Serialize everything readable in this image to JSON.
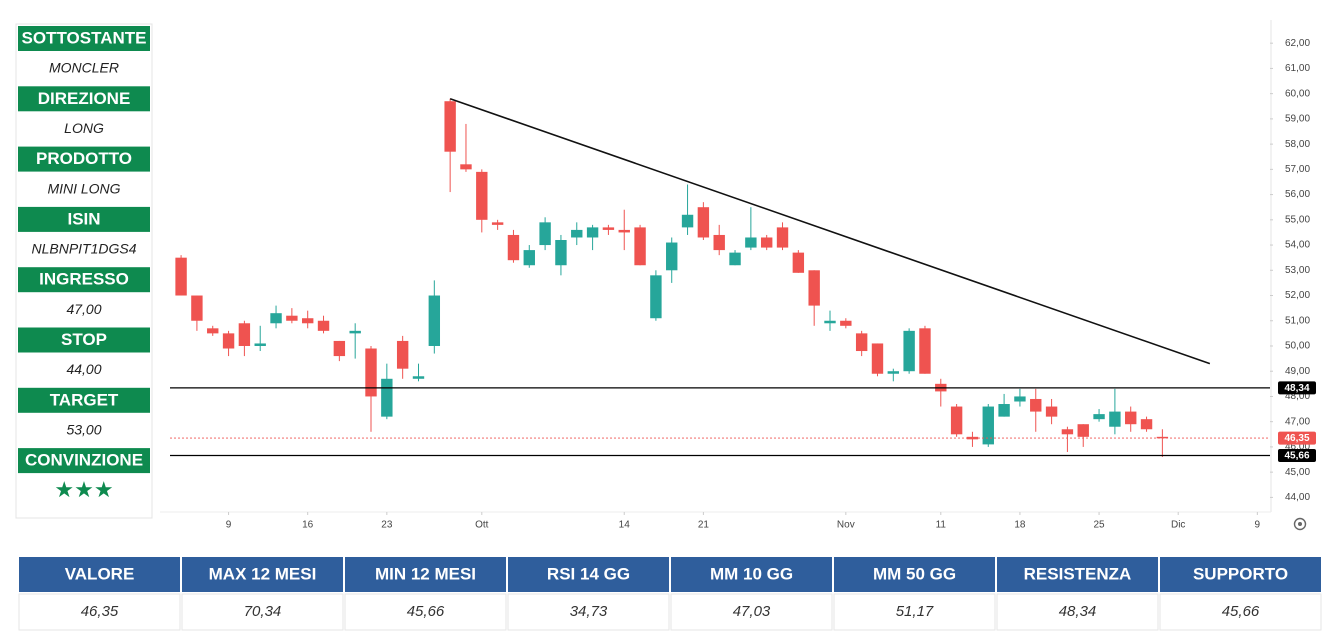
{
  "panel": [
    {
      "label": "SOTTOSTANTE",
      "value": "MONCLER"
    },
    {
      "label": "DIREZIONE",
      "value": "LONG"
    },
    {
      "label": "PRODOTTO",
      "value": "MINI LONG"
    },
    {
      "label": "ISIN",
      "value": "NLBNPIT1DGS4"
    },
    {
      "label": "INGRESSO",
      "value": "47,00"
    },
    {
      "label": "STOP",
      "value": "44,00"
    },
    {
      "label": "TARGET",
      "value": "53,00"
    },
    {
      "label": "CONVINZIONE",
      "value": "★★★"
    }
  ],
  "chart_data": {
    "type": "candlestick",
    "up_color": "#26a69a",
    "down_color": "#ef5350",
    "x": [
      0,
      1,
      2,
      3,
      4,
      5,
      6,
      7,
      8,
      9,
      10,
      11,
      12,
      13,
      14,
      15,
      16,
      17,
      18,
      19,
      20,
      21,
      22,
      23,
      24,
      25,
      26,
      27,
      28,
      29,
      30,
      31,
      32,
      33,
      34,
      35,
      36,
      37,
      38,
      39,
      40,
      41,
      42,
      43,
      44,
      45,
      46,
      47,
      48,
      49,
      50,
      51,
      52,
      53,
      54,
      55,
      56,
      57,
      58,
      59,
      60,
      61,
      62
    ],
    "open": [
      53.5,
      52.0,
      50.7,
      50.5,
      50.9,
      50.0,
      50.9,
      51.2,
      51.1,
      51.0,
      50.2,
      50.5,
      49.9,
      47.2,
      50.2,
      48.7,
      50.0,
      59.7,
      57.2,
      56.9,
      54.9,
      54.4,
      53.2,
      54.0,
      53.2,
      54.3,
      54.3,
      54.7,
      54.6,
      54.7,
      51.1,
      53.0,
      54.7,
      55.5,
      54.4,
      53.2,
      53.9,
      54.3,
      54.7,
      53.7,
      53.0,
      50.9,
      51.0,
      50.5,
      50.1,
      48.9,
      49.0,
      50.7,
      48.5,
      47.6,
      46.4,
      46.1,
      47.2,
      47.8,
      47.9,
      47.6,
      46.7,
      46.9,
      47.1,
      46.8,
      47.4,
      47.1,
      46.4
    ],
    "high": [
      53.6,
      52.0,
      50.8,
      50.6,
      51.0,
      50.8,
      51.6,
      51.5,
      51.4,
      51.2,
      50.2,
      50.9,
      50.0,
      49.3,
      50.4,
      49.3,
      52.6,
      59.8,
      58.8,
      57.0,
      55.0,
      54.6,
      54.0,
      55.1,
      54.4,
      54.9,
      54.8,
      54.8,
      55.4,
      54.8,
      53.0,
      54.3,
      56.4,
      55.7,
      54.8,
      53.8,
      55.5,
      54.4,
      54.9,
      53.8,
      53.0,
      51.4,
      51.1,
      50.6,
      50.1,
      49.1,
      50.7,
      50.8,
      48.7,
      47.7,
      46.6,
      47.7,
      48.1,
      48.3,
      48.3,
      47.9,
      46.8,
      46.9,
      47.5,
      48.3,
      47.6,
      47.2,
      46.7
    ],
    "low": [
      52.0,
      50.6,
      50.4,
      49.6,
      49.6,
      49.8,
      50.7,
      50.9,
      50.7,
      50.5,
      49.4,
      49.5,
      46.6,
      47.1,
      48.7,
      48.6,
      49.7,
      56.1,
      56.9,
      54.5,
      54.6,
      53.3,
      53.1,
      53.8,
      52.8,
      54.0,
      53.8,
      54.4,
      53.8,
      53.2,
      51.0,
      52.5,
      54.4,
      54.2,
      53.6,
      53.2,
      53.8,
      53.8,
      53.8,
      52.9,
      50.8,
      50.6,
      50.7,
      49.6,
      48.8,
      48.6,
      48.9,
      48.9,
      47.6,
      46.4,
      46.0,
      46.0,
      47.2,
      47.6,
      46.6,
      46.9,
      45.8,
      46.0,
      47.0,
      46.5,
      46.6,
      46.6,
      45.6
    ],
    "close": [
      52.0,
      51.0,
      50.5,
      49.9,
      50.0,
      50.1,
      51.3,
      51.0,
      50.9,
      50.6,
      49.6,
      50.6,
      48.0,
      48.7,
      49.1,
      48.8,
      52.0,
      57.7,
      57.0,
      55.0,
      54.8,
      53.4,
      53.8,
      54.9,
      54.2,
      54.6,
      54.7,
      54.6,
      54.5,
      53.2,
      52.8,
      54.1,
      55.2,
      54.3,
      53.8,
      53.7,
      54.3,
      53.9,
      53.9,
      52.9,
      51.6,
      51.0,
      50.8,
      49.8,
      48.9,
      49.0,
      50.6,
      48.9,
      48.2,
      46.5,
      46.3,
      47.6,
      47.7,
      48.0,
      47.4,
      47.2,
      46.5,
      46.4,
      47.3,
      47.4,
      46.9,
      46.7,
      46.35
    ],
    "xlim": [
      -0.7,
      68.8
    ],
    "ylim": [
      43.5,
      62.8
    ],
    "xticks": [
      {
        "value": 3,
        "label": "9"
      },
      {
        "value": 8,
        "label": "16"
      },
      {
        "value": 13,
        "label": "23"
      },
      {
        "value": 19,
        "label": "Ott"
      },
      {
        "value": 28,
        "label": "14"
      },
      {
        "value": 33,
        "label": "21"
      },
      {
        "value": 42,
        "label": "Nov"
      },
      {
        "value": 48,
        "label": "11"
      },
      {
        "value": 53,
        "label": "18"
      },
      {
        "value": 58,
        "label": "25"
      },
      {
        "value": 63,
        "label": "Dic"
      },
      {
        "value": 68,
        "label": "9"
      }
    ],
    "yticks": [
      {
        "value": 44,
        "label": "44,00"
      },
      {
        "value": 45,
        "label": "45,00"
      },
      {
        "value": 46,
        "label": "46,00"
      },
      {
        "value": 47,
        "label": "47,00"
      },
      {
        "value": 48,
        "label": "48,00"
      },
      {
        "value": 49,
        "label": "49,00"
      },
      {
        "value": 50,
        "label": "50,00"
      },
      {
        "value": 51,
        "label": "51,00"
      },
      {
        "value": 52,
        "label": "52,00"
      },
      {
        "value": 53,
        "label": "53,00"
      },
      {
        "value": 54,
        "label": "54,00"
      },
      {
        "value": 55,
        "label": "55,00"
      },
      {
        "value": 56,
        "label": "56,00"
      },
      {
        "value": 57,
        "label": "57,00"
      },
      {
        "value": 58,
        "label": "58,00"
      },
      {
        "value": 59,
        "label": "59,00"
      },
      {
        "value": 60,
        "label": "60,00"
      },
      {
        "value": 61,
        "label": "61,00"
      },
      {
        "value": 62,
        "label": "62,00"
      }
    ],
    "levels": [
      {
        "value": 48.34,
        "label": "48,34",
        "color": "#000000",
        "style": "solid"
      },
      {
        "value": 45.66,
        "label": "45,66",
        "color": "#000000",
        "style": "solid"
      },
      {
        "value": 46.35,
        "label": "46,35",
        "color": "#ef5350",
        "style": "dotted"
      }
    ],
    "trendline": {
      "x": [
        17,
        65
      ],
      "y": [
        59.8,
        49.3
      ],
      "color": "#111111"
    }
  },
  "table": {
    "headers": [
      "VALORE",
      "MAX 12 MESI",
      "MIN 12 MESI",
      "RSI 14 GG",
      "MM 10 GG",
      "MM 50 GG",
      "RESISTENZA",
      "SUPPORTO"
    ],
    "values": [
      "46,35",
      "70,34",
      "45,66",
      "34,73",
      "47,03",
      "51,17",
      "48,34",
      "45,66"
    ]
  }
}
